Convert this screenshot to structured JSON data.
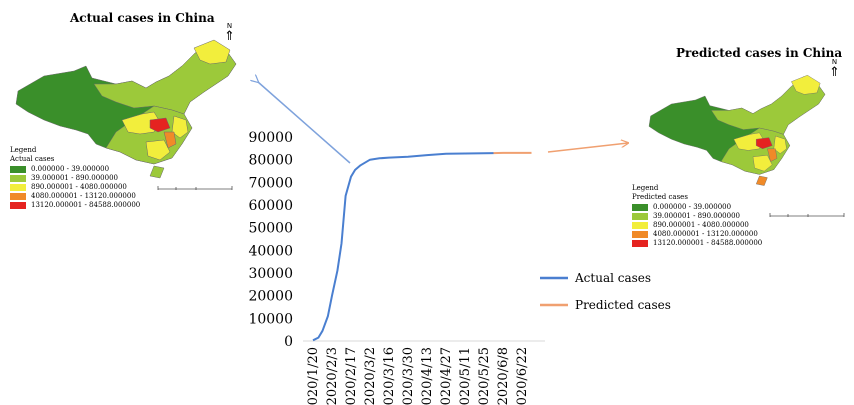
{
  "left_map": {
    "title": "Actual cases in China",
    "north": "N",
    "legend_title": "Legend",
    "legend_subtitle": "Actual cases",
    "classes": [
      {
        "label": "0.000000 - 39.000000",
        "color": "#3a8f2a"
      },
      {
        "label": "39.000001 - 890.000000",
        "color": "#9cc93a"
      },
      {
        "label": "890.000001 - 4080.000000",
        "color": "#f2ee3c"
      },
      {
        "label": "4080.000001 - 13120.000000",
        "color": "#f08a28"
      },
      {
        "label": "13120.000001 - 84588.000000",
        "color": "#e52320"
      }
    ]
  },
  "right_map": {
    "title": "Predicted cases in China",
    "north": "N",
    "legend_title": "Legend",
    "legend_subtitle": "Predicted cases",
    "classes": [
      {
        "label": "0.000000 - 39.000000",
        "color": "#3a8f2a"
      },
      {
        "label": "39.000001 - 890.000000",
        "color": "#9cc93a"
      },
      {
        "label": "890.000001 - 4080.000000",
        "color": "#f2ee3c"
      },
      {
        "label": "4080.000001 - 13120.000000",
        "color": "#f08a28"
      },
      {
        "label": "13120.000001 - 84588.000000",
        "color": "#e52320"
      }
    ]
  },
  "chart_data": {
    "type": "line",
    "categories": [
      "2020/1/20",
      "2020/2/3",
      "2020/2/17",
      "2020/3/2",
      "2020/3/16",
      "2020/3/30",
      "2020/4/13",
      "2020/4/27",
      "2020/5/11",
      "2020/5/25",
      "2020/6/8",
      "2020/6/22"
    ],
    "series": [
      {
        "name": "Actual cases",
        "color": "#4a7fd0",
        "x": [
          "2020/1/20",
          "2020/1/24",
          "2020/1/27",
          "2020/1/31",
          "2020/2/3",
          "2020/2/7",
          "2020/2/10",
          "2020/2/13",
          "2020/2/17",
          "2020/2/20",
          "2020/2/24",
          "2020/3/2",
          "2020/3/9",
          "2020/3/16",
          "2020/3/30",
          "2020/4/13",
          "2020/4/27",
          "2020/5/11",
          "2020/5/25",
          "2020/6/1"
        ],
        "values": [
          300,
          1500,
          4500,
          11000,
          20000,
          31000,
          43000,
          64000,
          72500,
          75500,
          77500,
          80000,
          80600,
          80900,
          81300,
          82000,
          82600,
          82700,
          82800,
          82900
        ]
      },
      {
        "name": "Predicted cases",
        "color": "#f0a070",
        "x": [
          "2020/6/1",
          "2020/6/8",
          "2020/6/15",
          "2020/6/22",
          "2020/6/29"
        ],
        "values": [
          82900,
          83000,
          83000,
          83000,
          83000
        ]
      }
    ],
    "yticks": [
      0,
      10000,
      20000,
      30000,
      40000,
      50000,
      60000,
      70000,
      80000,
      90000
    ],
    "ylim": [
      0,
      90000
    ],
    "grid": false,
    "legend_position": "right"
  }
}
